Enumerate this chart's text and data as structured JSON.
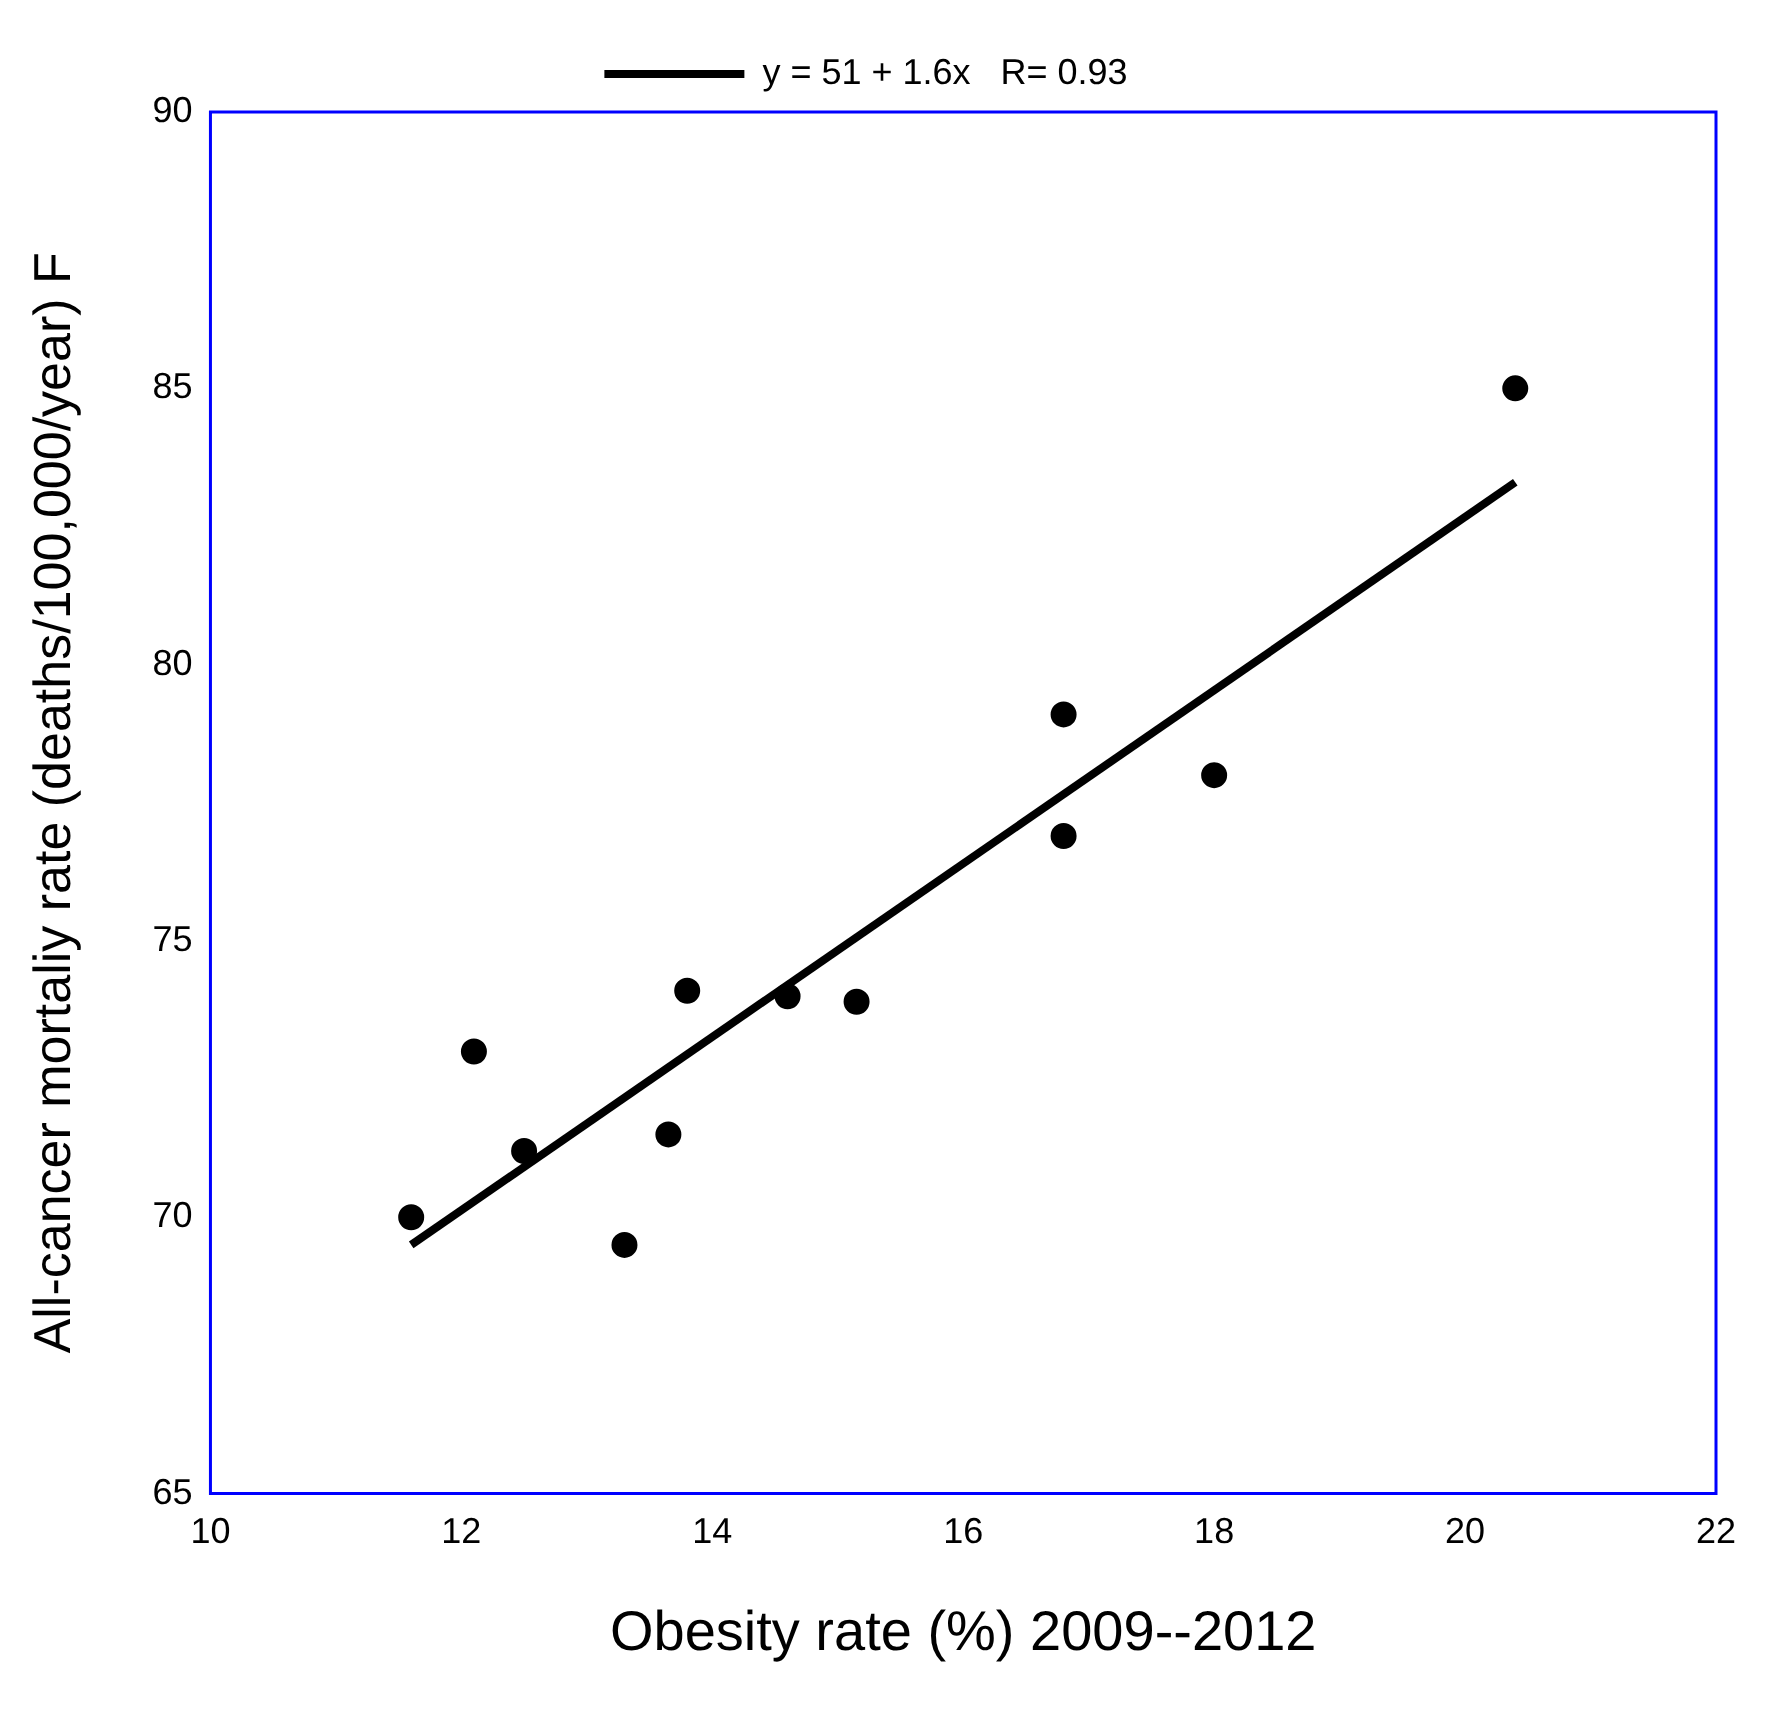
{
  "chart_data": {
    "type": "scatter",
    "xlabel": "Obesity rate (%) 2009--2012",
    "ylabel": "All-cancer mortaliy rate (deaths/100,000/year) F",
    "xlim": [
      10,
      22
    ],
    "xticks": [
      10,
      12,
      14,
      16,
      18,
      20,
      22
    ],
    "ylim": [
      65,
      90
    ],
    "yticks": [
      65,
      70,
      75,
      80,
      85,
      90
    ],
    "grid": false,
    "legend": "top",
    "series": [
      {
        "marker": "circle",
        "color": "#000000",
        "x": [
          11.6,
          12.1,
          12.5,
          13.3,
          13.65,
          13.8,
          14.6,
          15.15,
          16.8,
          16.8,
          18.0,
          20.4
        ],
        "values": [
          70.0,
          73.0,
          71.2,
          69.5,
          71.5,
          74.1,
          74.0,
          73.9,
          79.1,
          76.9,
          78.0,
          85.0
        ]
      },
      {
        "type": "line",
        "marker": "none",
        "name": "y = 51 + 1.6x   R= 0.93",
        "color": "#000000",
        "x": [
          11.6,
          20.4
        ],
        "values": [
          69.5,
          83.3
        ]
      }
    ]
  }
}
